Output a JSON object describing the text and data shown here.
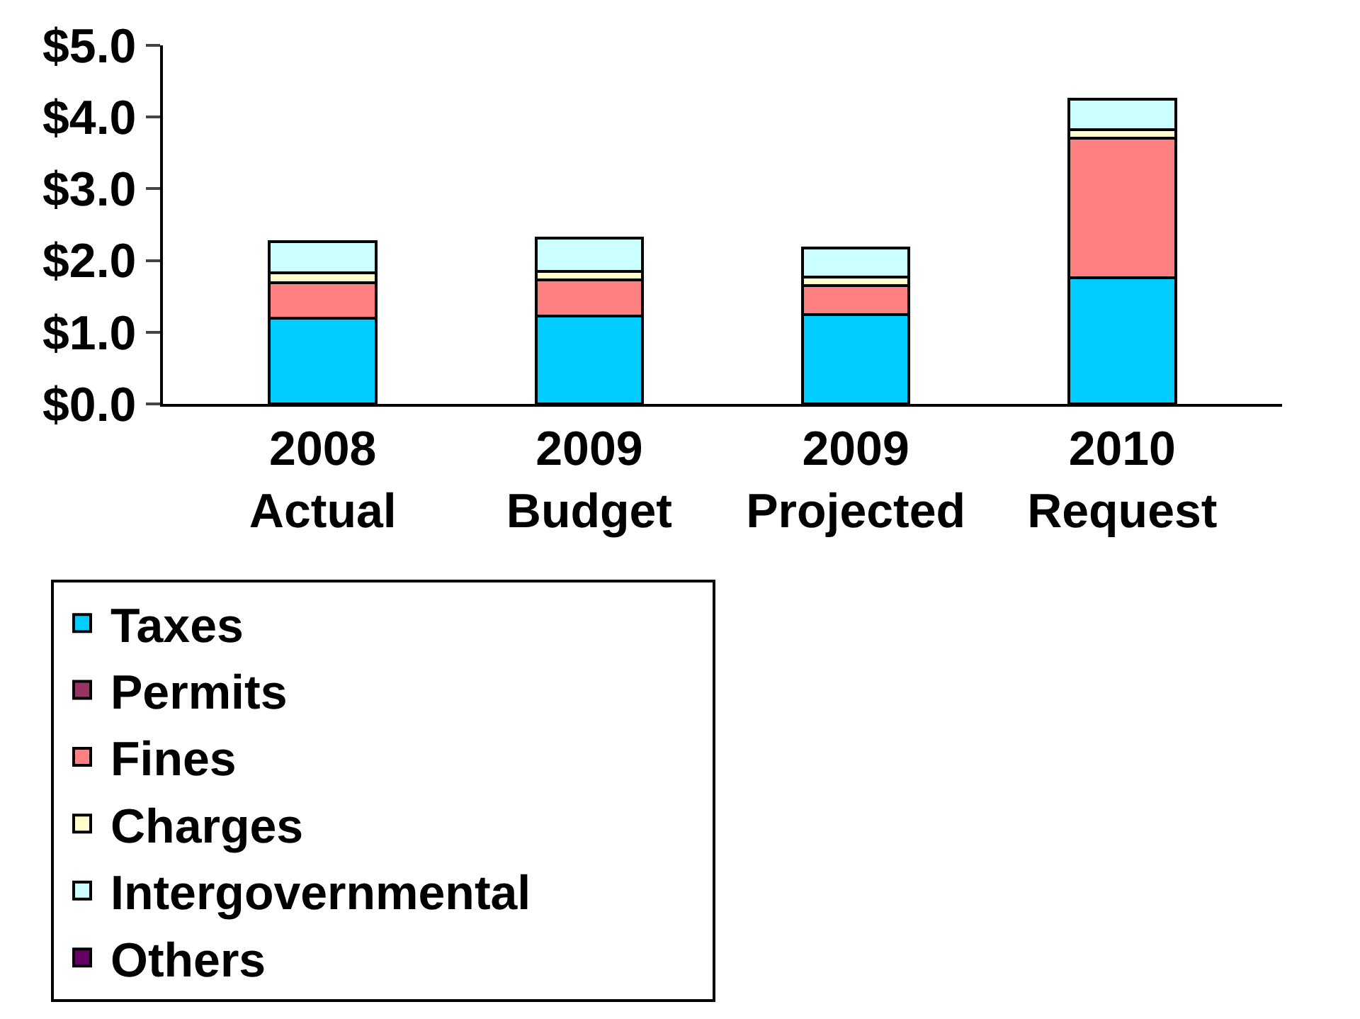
{
  "chart_data": {
    "type": "bar",
    "stacked": true,
    "categories": [
      "2008\nActual",
      "2009\nBudget",
      "2009\nProjected",
      "2010\nRequest"
    ],
    "series": [
      {
        "name": "Taxes",
        "color": "#00ccff",
        "values": [
          1.2,
          1.23,
          1.25,
          1.76
        ]
      },
      {
        "name": "Permits",
        "color": "#993366",
        "values": [
          null,
          null,
          null,
          null
        ]
      },
      {
        "name": "Fines",
        "color": "#ff8080",
        "values": [
          0.49,
          0.5,
          0.4,
          1.95
        ]
      },
      {
        "name": "Charges",
        "color": "#ffffcc",
        "values": [
          0.14,
          0.12,
          0.12,
          0.11
        ]
      },
      {
        "name": "Intergovernmental",
        "color": "#ccffff",
        "values": [
          0.43,
          0.46,
          0.4,
          0.43
        ]
      },
      {
        "name": "Others",
        "color": "#660066",
        "values": [
          null,
          null,
          null,
          null
        ]
      }
    ],
    "ylim": [
      0,
      5
    ],
    "yticks": [
      {
        "value": 0,
        "label": "$0.0"
      },
      {
        "value": 1,
        "label": "$1.0"
      },
      {
        "value": 2,
        "label": "$2.0"
      },
      {
        "value": 3,
        "label": "$3.0"
      },
      {
        "value": 4,
        "label": "$4.0"
      },
      {
        "value": 5,
        "label": "$5.0"
      }
    ],
    "legend": "bottom"
  }
}
